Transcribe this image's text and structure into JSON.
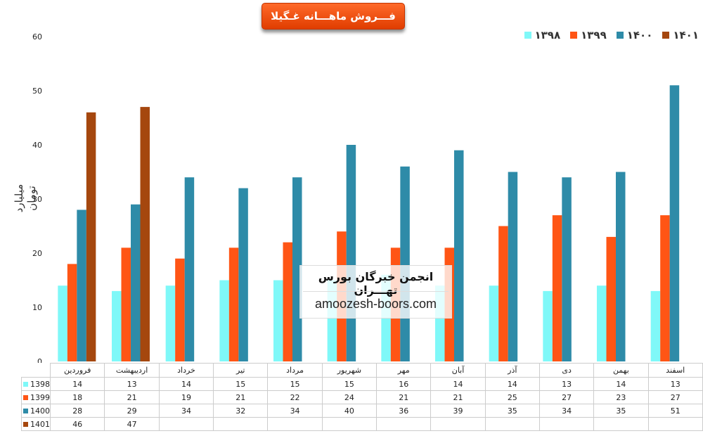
{
  "chart_data": {
    "type": "bar",
    "title": "فـــروش ماهـــانه غـگیلا",
    "ylabel": "میلیارد تومان",
    "xlabel": "",
    "ylim": [
      0,
      60
    ],
    "yticks": [
      0,
      10,
      20,
      30,
      40,
      50,
      60
    ],
    "grid": false,
    "legend_position": "top-right",
    "categories": [
      "فروردین",
      "اردیبهشت",
      "خرداد",
      "تیر",
      "مرداد",
      "شهریور",
      "مهر",
      "آبان",
      "آذر",
      "دی",
      "بهمن",
      "اسفند"
    ],
    "series": [
      {
        "name": "1398",
        "legend_label": "۱۳۹۸",
        "color": "#7ff8f8",
        "values": [
          14,
          13,
          14,
          15,
          15,
          15,
          16,
          14,
          14,
          13,
          14,
          13
        ]
      },
      {
        "name": "1399",
        "legend_label": "۱۳۹۹",
        "color": "#ff5515",
        "values": [
          18,
          21,
          19,
          21,
          22,
          24,
          21,
          21,
          25,
          27,
          23,
          27
        ]
      },
      {
        "name": "1400",
        "legend_label": "۱۴۰۰",
        "color": "#2e8ba8",
        "values": [
          28,
          29,
          34,
          32,
          34,
          40,
          36,
          39,
          35,
          34,
          35,
          51
        ]
      },
      {
        "name": "1401",
        "legend_label": "۱۴۰۱",
        "color": "#a5470e",
        "values": [
          46,
          47,
          null,
          null,
          null,
          null,
          null,
          null,
          null,
          null,
          null,
          null
        ]
      }
    ]
  },
  "watermark": {
    "title": "انجمن خبرگان بورس تهـــران",
    "url": "amoozesh-boors.com"
  }
}
